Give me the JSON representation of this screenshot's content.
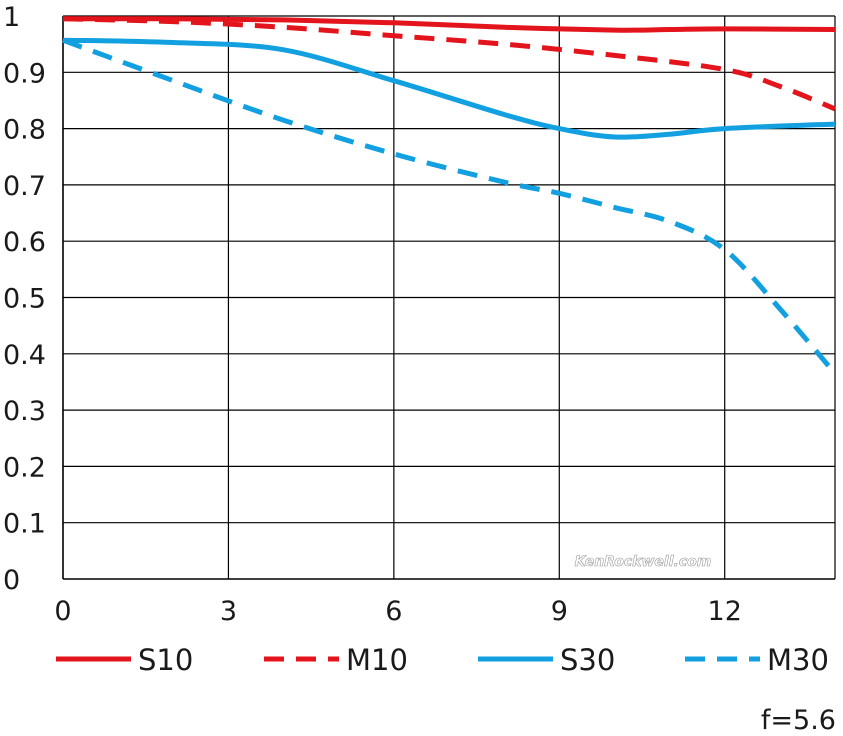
{
  "chart_data": {
    "type": "line",
    "title": "",
    "xlabel": "",
    "ylabel": "",
    "xlim": [
      0,
      14
    ],
    "ylim": [
      0,
      1
    ],
    "x_ticks": [
      "0",
      "3",
      "6",
      "9",
      "12"
    ],
    "y_ticks": [
      "0",
      "0.1",
      "0.2",
      "0.3",
      "0.4",
      "0.5",
      "0.6",
      "0.7",
      "0.8",
      "0.9",
      "1"
    ],
    "grid": true,
    "legend_position": "bottom",
    "series": [
      {
        "name": "S10",
        "color": "#e3141b",
        "dash": "solid",
        "x": [
          0,
          2,
          4,
          6,
          8,
          10,
          11,
          12,
          14
        ],
        "y": [
          0.995,
          0.995,
          0.993,
          0.988,
          0.98,
          0.975,
          0.976,
          0.977,
          0.976
        ]
      },
      {
        "name": "M10",
        "color": "#e3141b",
        "dash": "dashed",
        "x": [
          0,
          2,
          4,
          6,
          8,
          10,
          12,
          13,
          14
        ],
        "y": [
          0.995,
          0.99,
          0.98,
          0.965,
          0.95,
          0.93,
          0.905,
          0.875,
          0.835
        ]
      },
      {
        "name": "S30",
        "color": "#12a0e0",
        "dash": "solid",
        "x": [
          0,
          2,
          4,
          6,
          8,
          9,
          10,
          11,
          12,
          14
        ],
        "y": [
          0.957,
          0.953,
          0.94,
          0.885,
          0.825,
          0.8,
          0.785,
          0.79,
          0.8,
          0.808
        ]
      },
      {
        "name": "M30",
        "color": "#12a0e0",
        "dash": "dashed",
        "x": [
          0,
          2,
          4,
          6,
          8,
          9,
          10,
          11,
          12,
          13,
          14
        ],
        "y": [
          0.957,
          0.885,
          0.815,
          0.755,
          0.705,
          0.685,
          0.66,
          0.635,
          0.585,
          0.48,
          0.365
        ]
      }
    ]
  },
  "annotation": "f=5.6",
  "watermark": "KenRockwell.com"
}
